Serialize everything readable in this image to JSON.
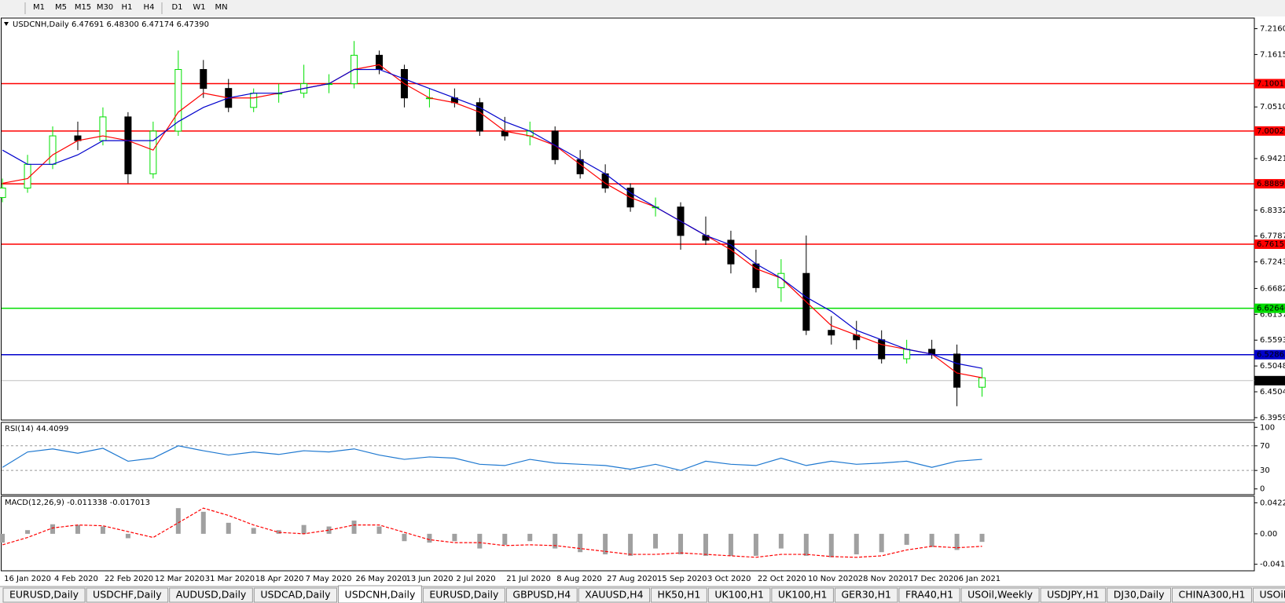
{
  "toolbar": {
    "timeframes": [
      "M1",
      "M5",
      "M15",
      "M30",
      "H1",
      "H4",
      "D1",
      "W1",
      "MN"
    ]
  },
  "chart_data": [
    {
      "type": "candlestick",
      "title": "USDCNH,Daily 6.47691 6.48300 6.47174 6.47390",
      "categories": [
        "16 Jan 2020",
        null,
        "4 Feb 2020",
        null,
        "22 Feb 2020",
        null,
        "12 Mar 2020",
        null,
        "31 Mar 2020",
        null,
        "18 Apr 2020",
        null,
        "7 May 2020",
        null,
        "26 May 2020",
        null,
        "13 Jun 2020",
        null,
        "2 Jul 2020",
        null,
        "21 Jul 2020",
        null,
        "8 Aug 2020",
        null,
        "27 Aug 2020",
        null,
        "15 Sep 2020",
        null,
        "3 Oct 2020",
        null,
        "22 Oct 2020",
        null,
        "10 Nov 2020",
        null,
        "28 Nov 2020",
        null,
        "17 Dec 2020",
        null,
        "6 Jan 2021",
        null
      ],
      "open": [
        6.86,
        6.88,
        6.93,
        6.99,
        6.98,
        7.03,
        6.91,
        7.0,
        7.13,
        7.09,
        7.05,
        7.08,
        7.08,
        7.1,
        7.1,
        7.16,
        7.13,
        7.07,
        7.07,
        7.06,
        7.0,
        6.99,
        7.0,
        6.94,
        6.91,
        6.88,
        6.84,
        6.84,
        6.78,
        6.77,
        6.72,
        6.67,
        6.7,
        6.58,
        6.57,
        6.56,
        6.52,
        6.54,
        6.53,
        6.46
      ],
      "high": [
        6.9,
        6.95,
        7.01,
        7.02,
        7.05,
        7.04,
        7.02,
        7.17,
        7.15,
        7.11,
        7.09,
        7.1,
        7.14,
        7.12,
        7.19,
        7.17,
        7.14,
        7.09,
        7.09,
        7.07,
        7.03,
        7.02,
        7.01,
        6.96,
        6.93,
        6.89,
        6.86,
        6.85,
        6.82,
        6.79,
        6.75,
        6.73,
        6.78,
        6.61,
        6.6,
        6.58,
        6.56,
        6.56,
        6.55,
        6.5
      ],
      "low": [
        6.85,
        6.87,
        6.92,
        6.96,
        6.97,
        6.89,
        6.9,
        6.99,
        7.07,
        7.04,
        7.04,
        7.06,
        7.07,
        7.08,
        7.09,
        7.12,
        7.05,
        7.05,
        7.05,
        6.99,
        6.98,
        6.97,
        6.93,
        6.9,
        6.87,
        6.83,
        6.82,
        6.75,
        6.76,
        6.7,
        6.66,
        6.64,
        6.57,
        6.55,
        6.54,
        6.51,
        6.51,
        6.52,
        6.42,
        6.44
      ],
      "close": [
        6.88,
        6.93,
        6.99,
        6.98,
        7.03,
        6.91,
        7.0,
        7.13,
        7.09,
        7.05,
        7.08,
        7.08,
        7.1,
        7.1,
        7.16,
        7.13,
        7.07,
        7.07,
        7.06,
        7.0,
        6.99,
        7.0,
        6.94,
        6.91,
        6.88,
        6.84,
        6.84,
        6.78,
        6.77,
        6.72,
        6.67,
        6.7,
        6.58,
        6.57,
        6.56,
        6.52,
        6.54,
        6.53,
        6.46,
        6.48
      ],
      "up_color": "#00e000",
      "down_color": "#000000",
      "series": [
        {
          "color": "#ff0000",
          "values": [
            6.89,
            6.9,
            6.95,
            6.98,
            6.99,
            6.98,
            6.96,
            7.04,
            7.08,
            7.07,
            7.07,
            7.08,
            7.09,
            7.1,
            7.13,
            7.14,
            7.1,
            7.07,
            7.06,
            7.04,
            7.0,
            6.99,
            6.97,
            6.93,
            6.89,
            6.86,
            6.84,
            6.81,
            6.78,
            6.75,
            6.71,
            6.69,
            6.64,
            6.59,
            6.57,
            6.55,
            6.54,
            6.53,
            6.49,
            6.48
          ]
        },
        {
          "color": "#0000cc",
          "values": [
            6.96,
            6.93,
            6.93,
            6.95,
            6.98,
            6.98,
            6.98,
            7.02,
            7.05,
            7.07,
            7.08,
            7.08,
            7.09,
            7.1,
            7.13,
            7.13,
            7.11,
            7.09,
            7.07,
            7.05,
            7.02,
            7.0,
            6.97,
            6.94,
            6.91,
            6.87,
            6.84,
            6.81,
            6.78,
            6.76,
            6.72,
            6.69,
            6.65,
            6.62,
            6.58,
            6.56,
            6.54,
            6.53,
            6.51,
            6.5
          ]
        }
      ],
      "levels": [
        {
          "price": 7.10011,
          "color": "#ff0000"
        },
        {
          "price": 7.00029,
          "color": "#ff0000"
        },
        {
          "price": 6.88897,
          "color": "#ff0000"
        },
        {
          "price": 6.76157,
          "color": "#ff0000"
        },
        {
          "price": 6.62646,
          "color": "#00dd00"
        },
        {
          "price": 6.52865,
          "color": "#0000cc"
        },
        {
          "price": {
            "value": 6.4739,
            "label": "6.47390"
          },
          "color": "#000000",
          "line_color": "#c0c0c0"
        }
      ],
      "ylim": [
        6.3908,
        7.2384
      ],
      "yticks": [
        {
          "value": 7.216,
          "label": "7.21600"
        },
        7.16155,
        {
          "value": 7.051,
          "label": "7.05100"
        },
        {
          "value": 6.9421,
          "label": "6.94210"
        },
        {
          "value": 6.8332,
          "label": "6.83320"
        },
        6.77875,
        {
          "value": 6.7243,
          "label": "6.72430"
        },
        {
          "value": 6.6682,
          "label": "6.66820"
        },
        {
          "value": 6.6137,
          "label": "6.61370"
        },
        {
          "value": 6.5593,
          "label": "6.55930"
        },
        6.50485,
        {
          "value": 6.4504,
          "label": "6.45040"
        },
        6.39595
      ]
    },
    {
      "type": "line",
      "title": "RSI(14) 44.4099",
      "color": "#1e78d0",
      "values": [
        35,
        60,
        65,
        58,
        66,
        45,
        50,
        70,
        62,
        55,
        60,
        56,
        62,
        60,
        65,
        55,
        48,
        52,
        50,
        40,
        38,
        48,
        42,
        40,
        38,
        32,
        40,
        30,
        45,
        40,
        38,
        50,
        38,
        45,
        40,
        42,
        45,
        35,
        45,
        48
      ],
      "ylim": [
        -9.3,
        108
      ],
      "yticks": [
        0,
        30,
        70,
        100
      ],
      "levels": [
        30,
        70
      ]
    },
    {
      "type": "macd",
      "title": "MACD(12,26,9) -0.011338 -0.017013",
      "values": [
        -0.012,
        0.005,
        0.013,
        0.012,
        0.01,
        -0.006,
        0,
        0.035,
        0.03,
        0.015,
        0.008,
        0.005,
        0.012,
        0.01,
        0.018,
        0.01,
        -0.01,
        -0.012,
        -0.01,
        -0.02,
        -0.015,
        -0.01,
        -0.02,
        -0.025,
        -0.028,
        -0.03,
        -0.02,
        -0.028,
        -0.03,
        -0.03,
        -0.03,
        -0.02,
        -0.03,
        -0.032,
        -0.028,
        -0.025,
        -0.015,
        -0.018,
        -0.022,
        -0.011
      ],
      "color": "#a0a0a0",
      "signal": {
        "color": "#ff0000",
        "values": [
          -0.015,
          -0.005,
          0.008,
          0.012,
          0.011,
          0.003,
          -0.005,
          0.015,
          0.035,
          0.025,
          0.012,
          0.002,
          0,
          0.005,
          0.012,
          0.012,
          0.002,
          -0.008,
          -0.012,
          -0.012,
          -0.016,
          -0.015,
          -0.016,
          -0.02,
          -0.024,
          -0.028,
          -0.028,
          -0.026,
          -0.028,
          -0.03,
          -0.032,
          -0.028,
          -0.028,
          -0.031,
          -0.032,
          -0.03,
          -0.022,
          -0.017,
          -0.019,
          -0.017
        ]
      },
      "ylim": [
        -0.0504,
        0.0512
      ],
      "yticks": [
        0.042275,
        {
          "value": 0,
          "label": "0.00"
        },
        -0.04148
      ]
    }
  ],
  "tabs": {
    "items": [
      "EURUSD,Daily",
      "USDCHF,Daily",
      "AUDUSD,Daily",
      "USDCAD,Daily",
      "USDCNH,Daily",
      "EURUSD,Daily",
      "GBPUSD,H4",
      "XAUUSD,H4",
      "HK50,H1",
      "UK100,H1",
      "UK100,H1",
      "GER30,H1",
      "FRA40,H1",
      "USOil,Weekly",
      "USDJPY,H1",
      "DJ30,Daily",
      "CHINA300,H1",
      "USOil,"
    ],
    "active": 4
  }
}
